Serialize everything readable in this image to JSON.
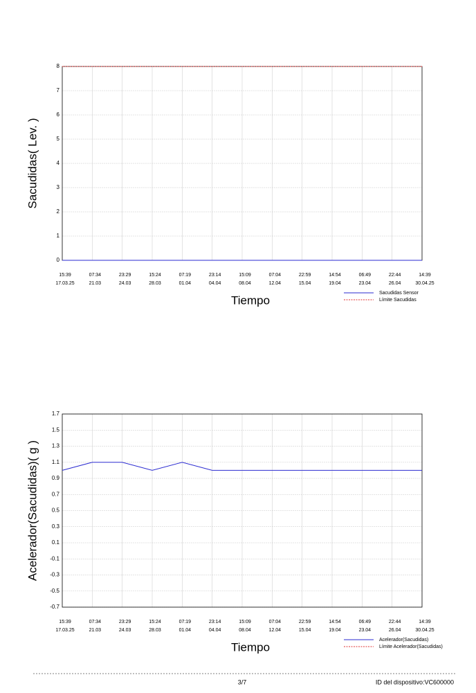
{
  "chart_data": [
    {
      "type": "line",
      "y_label": "Sacudidas( Lev. )",
      "x_label": "Tiempo",
      "categories": [
        "15:39",
        "07:34",
        "23:29",
        "15:24",
        "07:19",
        "23:14",
        "15:09",
        "07:04",
        "22:59",
        "14:54",
        "06:49",
        "22:44",
        "14:39"
      ],
      "category_dates": [
        "17.03.25",
        "21.03",
        "24.03",
        "28.03",
        "01.04",
        "04.04",
        "08.04",
        "12.04",
        "15.04",
        "19.04",
        "23.04",
        "26.04",
        "30.04.25"
      ],
      "ylim": [
        0,
        8
      ],
      "yticks": [
        0,
        1,
        2,
        3,
        4,
        5,
        6,
        7,
        8
      ],
      "grid": true,
      "series": [
        {
          "name": "Sacudidas Sensor",
          "color": "#2a2ad0",
          "dash": false,
          "values": [
            0,
            0,
            0,
            0,
            0,
            0,
            0,
            0,
            0,
            0,
            0,
            0,
            0
          ]
        },
        {
          "name": "Límite Sacudidas",
          "color": "#e03030",
          "dash": true,
          "values": [
            8,
            8,
            8,
            8,
            8,
            8,
            8,
            8,
            8,
            8,
            8,
            8,
            8
          ]
        }
      ]
    },
    {
      "type": "line",
      "y_label": "Acelerador(Sacudidas)( g )",
      "x_label": "Tiempo",
      "categories": [
        "15:39",
        "07:34",
        "23:29",
        "15:24",
        "07:19",
        "23:14",
        "15:09",
        "07:04",
        "22:59",
        "14:54",
        "06:49",
        "22:44",
        "14:39"
      ],
      "category_dates": [
        "17.03.25",
        "21.03",
        "24.03",
        "28.03",
        "01.04",
        "04.04",
        "08.04",
        "12.04",
        "15.04",
        "19.04",
        "23.04",
        "26.04",
        "30.04.25"
      ],
      "ylim": [
        -0.7,
        1.7
      ],
      "yticks": [
        -0.7,
        -0.5,
        -0.3,
        -0.1,
        0.1,
        0.3,
        0.5,
        0.7,
        0.9,
        1.1,
        1.3,
        1.5,
        1.7
      ],
      "grid": true,
      "series": [
        {
          "name": "Acelerador(Sacudidas)",
          "color": "#2a2ad0",
          "dash": false,
          "values": [
            1,
            1.1,
            1.1,
            1,
            1.1,
            1,
            1,
            1,
            1,
            1,
            1,
            1,
            1
          ]
        },
        {
          "name": "Límite Acelerador(Sacudidas)",
          "color": "#e03030",
          "dash": true,
          "values": [
            null,
            null,
            null,
            null,
            null,
            null,
            null,
            null,
            null,
            null,
            null,
            null,
            null
          ]
        }
      ]
    }
  ],
  "footer": {
    "page": "3/7",
    "device_id": "ID del dispositivo:VC600000"
  }
}
